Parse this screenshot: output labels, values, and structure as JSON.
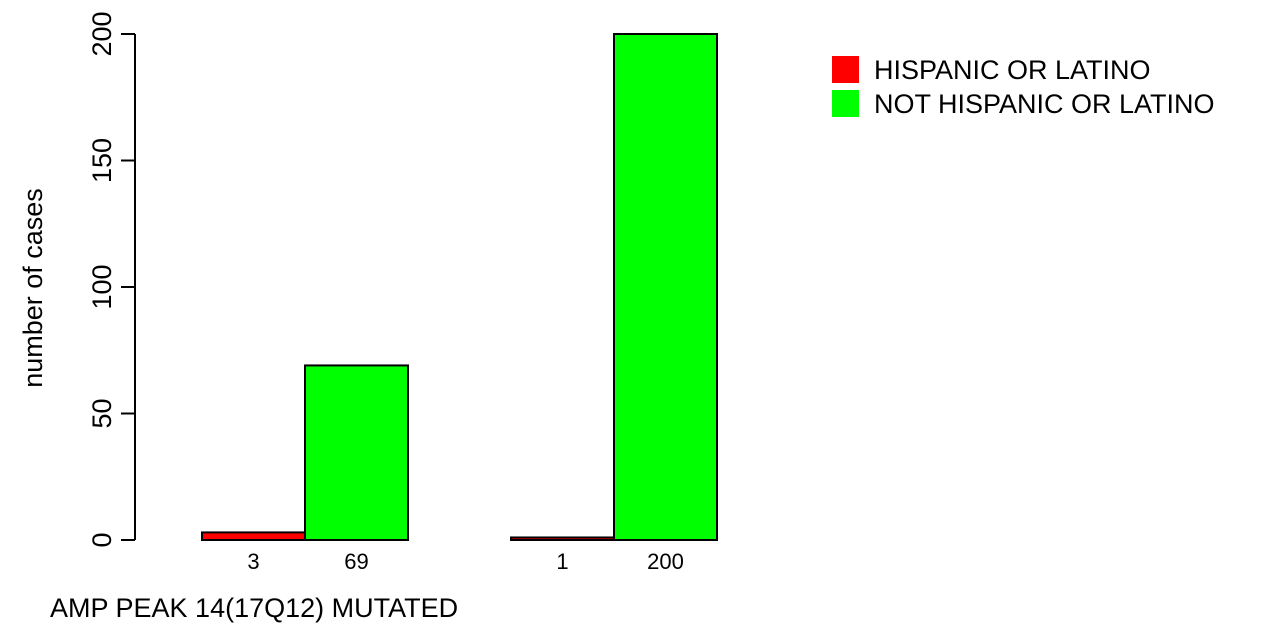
{
  "chart_data": {
    "type": "bar",
    "title": "",
    "xlabel": "AMP PEAK 14(17Q12) MUTATED",
    "ylabel": "number of cases",
    "ylim": [
      0,
      200
    ],
    "yticks": [
      0,
      50,
      100,
      150,
      200
    ],
    "grid": false,
    "legend_position": "top-right",
    "groups": [
      "",
      ""
    ],
    "series": [
      {
        "name": "HISPANIC OR LATINO",
        "color": "#ff0000",
        "values": [
          3,
          1
        ]
      },
      {
        "name": "NOT HISPANIC OR LATINO",
        "color": "#00ff00",
        "values": [
          69,
          200
        ]
      }
    ]
  }
}
